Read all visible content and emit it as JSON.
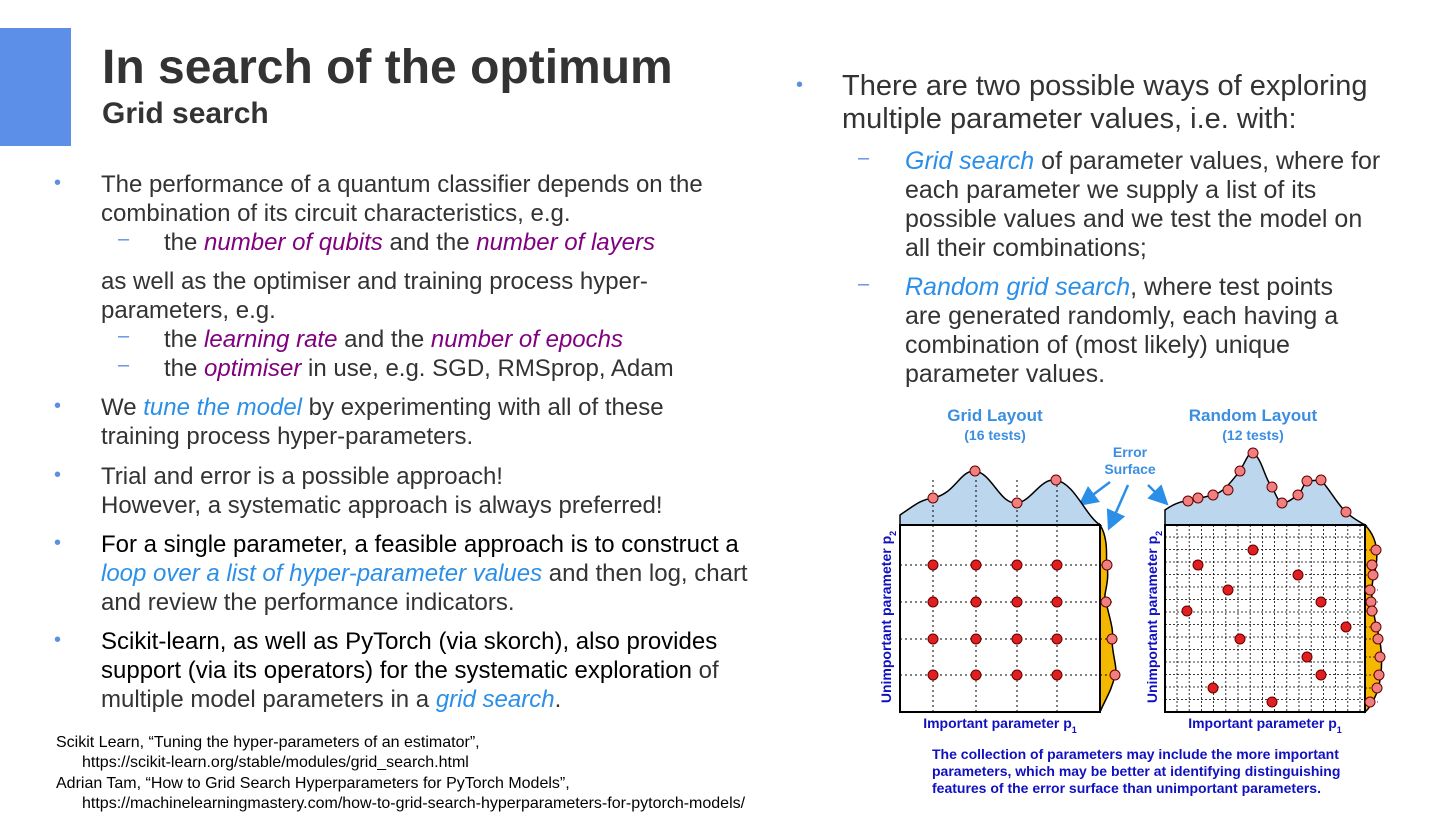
{
  "header": {
    "title": "In search of the optimum",
    "subtitle": "Grid search"
  },
  "left": [
    [
      "The performance of a quantum classifier depends on the combination of its circuit characteristics, e.g."
    ],
    [
      "the ",
      "number of qubits",
      " and the ",
      "number of layers"
    ],
    [
      "as well as the optimiser and training process hyper-parameters, e.g."
    ],
    [
      "the ",
      "learning rate",
      " and the ",
      "number of epochs"
    ],
    [
      "the ",
      "optimiser",
      " in use, e.g. SGD, RMSprop, Adam"
    ],
    [
      "We ",
      "tune the model",
      " by experimenting with all of these training process hyper-parameters."
    ],
    [
      "Trial and error is a possible approach!",
      "However, a systematic approach is always preferred!"
    ],
    [
      "For a single parameter, a feasible approach is to construct a ",
      "loop over a list of hyper-parameter values",
      " and then log, chart and review the performance indicators."
    ],
    [
      "Scikit-learn, as well as PyTorch (via skorch), also provides support (via its operators) for the systematic exploration",
      " of multiple model parameters in a ",
      "grid search",
      "."
    ]
  ],
  "right": [
    [
      "There are two possible ways of exploring multiple parameter values, i.e. with:"
    ],
    [
      "Grid search",
      " of parameter values, where for each parameter we supply a list of its possible values and we test the model on all their combinations;"
    ],
    [
      "Random grid search",
      ", where test points are generated randomly, each having a combination of (most likely) unique parameter values."
    ]
  ],
  "figure": {
    "grid_title": "Grid Layout",
    "grid_tests": "(16 tests)",
    "random_title": "Random Layout",
    "random_tests": "(12 tests)",
    "error_surface": [
      "Error",
      "Surface"
    ],
    "y_label": "Unimportant parameter p",
    "y_sub": "2",
    "x_label": "Important parameter p",
    "x_sub": "1",
    "caption": "The collection of parameters may include the more important parameters, which may be better at identifying distinguishing features of the error surface than unimportant parameters."
  },
  "references": [
    [
      "Scikit Learn, “Tuning the hyper-parameters of an estimator”,",
      "https://scikit-learn.org/stable/modules/grid_search.html"
    ],
    [
      "Adrian Tam, “How to Grid Search Hyperparameters for PyTorch Models”,",
      "https://machinelearningmastery.com/how-to-grid-search-hyperparameters-for-pytorch-models/"
    ]
  ]
}
